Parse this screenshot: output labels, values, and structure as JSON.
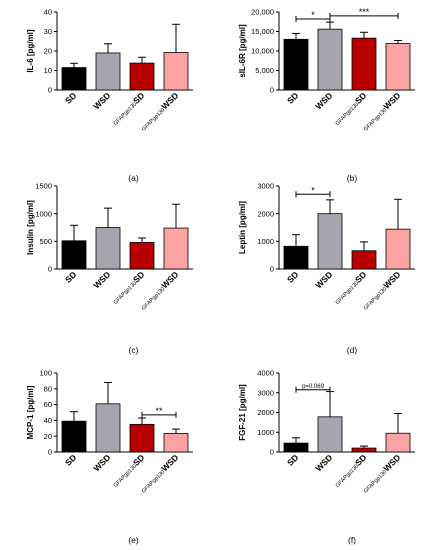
{
  "chart_data": [
    {
      "type": "bar",
      "panel": "(a)",
      "ylabel": "IL-6 [pg/ml]",
      "categories": [
        "SD",
        "WSD",
        "GFAPgp130 SD",
        "GFAPgp130 WSD"
      ],
      "values": [
        11.5,
        19,
        13.8,
        19.2
      ],
      "errors": [
        2.2,
        4.7,
        3,
        14.5
      ],
      "ylim": [
        0,
        40
      ],
      "yticks": [
        "0",
        "10",
        "20",
        "30",
        "40"
      ],
      "yticks_values": [
        0,
        10,
        20,
        30,
        40
      ],
      "significance": []
    },
    {
      "type": "bar",
      "panel": "(b)",
      "ylabel": "sIL-6R [pg/ml]",
      "categories": [
        "SD",
        "WSD",
        "GFAPgp130 SD",
        "GFAPgp130 WSD"
      ],
      "values": [
        13000,
        15600,
        13300,
        11900
      ],
      "errors": [
        1500,
        1800,
        1500,
        800
      ],
      "ylim": [
        0,
        20000
      ],
      "yticks": [
        "0",
        "5,000",
        "10,000",
        "15,000",
        "20,000"
      ],
      "yticks_values": [
        0,
        5000,
        10000,
        15000,
        20000
      ],
      "significance": [
        {
          "from": 0,
          "to": 1,
          "label": "*",
          "y": 18200
        },
        {
          "from": 1,
          "to": 3,
          "label": "***",
          "y": 19000
        }
      ]
    },
    {
      "type": "bar",
      "panel": "(c)",
      "ylabel": "Insulin [pg/ml]",
      "categories": [
        "SD",
        "WSD",
        "GFAPgp130 SD",
        "GFAPgp130 WSD"
      ],
      "values": [
        510,
        750,
        480,
        740
      ],
      "errors": [
        280,
        350,
        80,
        430
      ],
      "ylim": [
        0,
        1500
      ],
      "yticks": [
        "0",
        "500",
        "1000",
        "1500"
      ],
      "yticks_values": [
        0,
        500,
        1000,
        1500
      ],
      "significance": []
    },
    {
      "type": "bar",
      "panel": "(d)",
      "ylabel": "Leptin [pg/ml]",
      "categories": [
        "SD",
        "WSD",
        "GFAPgp130 SD",
        "GFAPgp130 WSD"
      ],
      "values": [
        820,
        2000,
        660,
        1440
      ],
      "errors": [
        420,
        500,
        320,
        1080
      ],
      "ylim": [
        0,
        3000
      ],
      "yticks": [
        "0",
        "1000",
        "2000",
        "3000"
      ],
      "yticks_values": [
        0,
        1000,
        2000,
        3000
      ],
      "significance": [
        {
          "from": 0,
          "to": 1,
          "label": "*",
          "y": 2700
        }
      ]
    },
    {
      "type": "bar",
      "panel": "(e)",
      "ylabel": "MCP-1 [pg/ml]",
      "categories": [
        "SD",
        "WSD",
        "GFAPgp130 SD",
        "GFAPgp130 WSD"
      ],
      "values": [
        39,
        61,
        35,
        23.5
      ],
      "errors": [
        12,
        27,
        8,
        5.5
      ],
      "ylim": [
        0,
        100
      ],
      "yticks": [
        "0",
        "20",
        "40",
        "60",
        "80",
        "100"
      ],
      "yticks_values": [
        0,
        20,
        40,
        60,
        80,
        100
      ],
      "significance": [
        {
          "from": 2,
          "to": 3,
          "label": "**",
          "y": 47
        }
      ]
    },
    {
      "type": "bar",
      "panel": "(f)",
      "ylabel": "FGF-21 [pg/ml]",
      "categories": [
        "SD",
        "WSD",
        "GFAPgp130 SD",
        "GFAPgp130 WSD"
      ],
      "values": [
        450,
        1780,
        200,
        950
      ],
      "errors": [
        270,
        1280,
        100,
        1000
      ],
      "ylim": [
        0,
        4000
      ],
      "yticks": [
        "0",
        "1000",
        "2000",
        "3000",
        "4000"
      ],
      "yticks_values": [
        0,
        1000,
        2000,
        3000,
        4000
      ],
      "significance": [
        {
          "from": 0,
          "to": 1,
          "label": "p=0.069",
          "y": 3150
        }
      ]
    }
  ],
  "colors": {
    "sd": "#000000",
    "wsd": "#a5a5ad",
    "gfap_sd": "#b80000",
    "gfap_wsd": "#fba3a3"
  },
  "category_parts": [
    {
      "prefix": "",
      "main": "SD"
    },
    {
      "prefix": "",
      "main": "WSD"
    },
    {
      "prefix": "GFAPgp130",
      "main": "SD"
    },
    {
      "prefix": "GFAPgp130",
      "main": "WSD"
    }
  ]
}
